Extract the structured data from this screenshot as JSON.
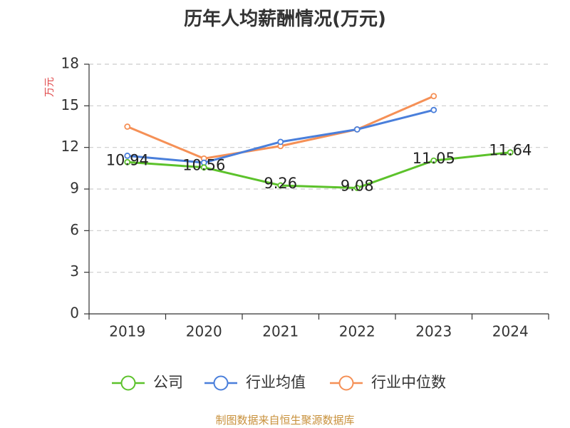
{
  "title": "历年人均薪酬情况(万元)",
  "source": "制图数据来自恒生聚源数据库",
  "chart_data": {
    "type": "line",
    "title": "历年人均薪酬情况(万元)",
    "ylabel": "万元",
    "xlabel": "",
    "categories": [
      "2019",
      "2020",
      "2021",
      "2022",
      "2023",
      "2024"
    ],
    "ylim": [
      0,
      18
    ],
    "yticks": [
      0,
      3,
      6,
      9,
      12,
      15,
      18
    ],
    "grid": true,
    "legend_position": "bottom",
    "series": [
      {
        "name": "公司",
        "color": "#5cc22b",
        "values": [
          10.94,
          10.56,
          9.26,
          9.08,
          11.05,
          11.64
        ],
        "data_labels": [
          "10.94",
          "10.56",
          "9.26",
          "9.08",
          "11.05",
          "11.64"
        ]
      },
      {
        "name": "行业均值",
        "color": "#4a7fdb",
        "values": [
          11.4,
          10.9,
          12.4,
          13.3,
          14.7,
          null
        ]
      },
      {
        "name": "行业中位数",
        "color": "#f59056",
        "values": [
          13.5,
          11.2,
          12.1,
          13.3,
          15.7,
          null
        ]
      }
    ]
  }
}
